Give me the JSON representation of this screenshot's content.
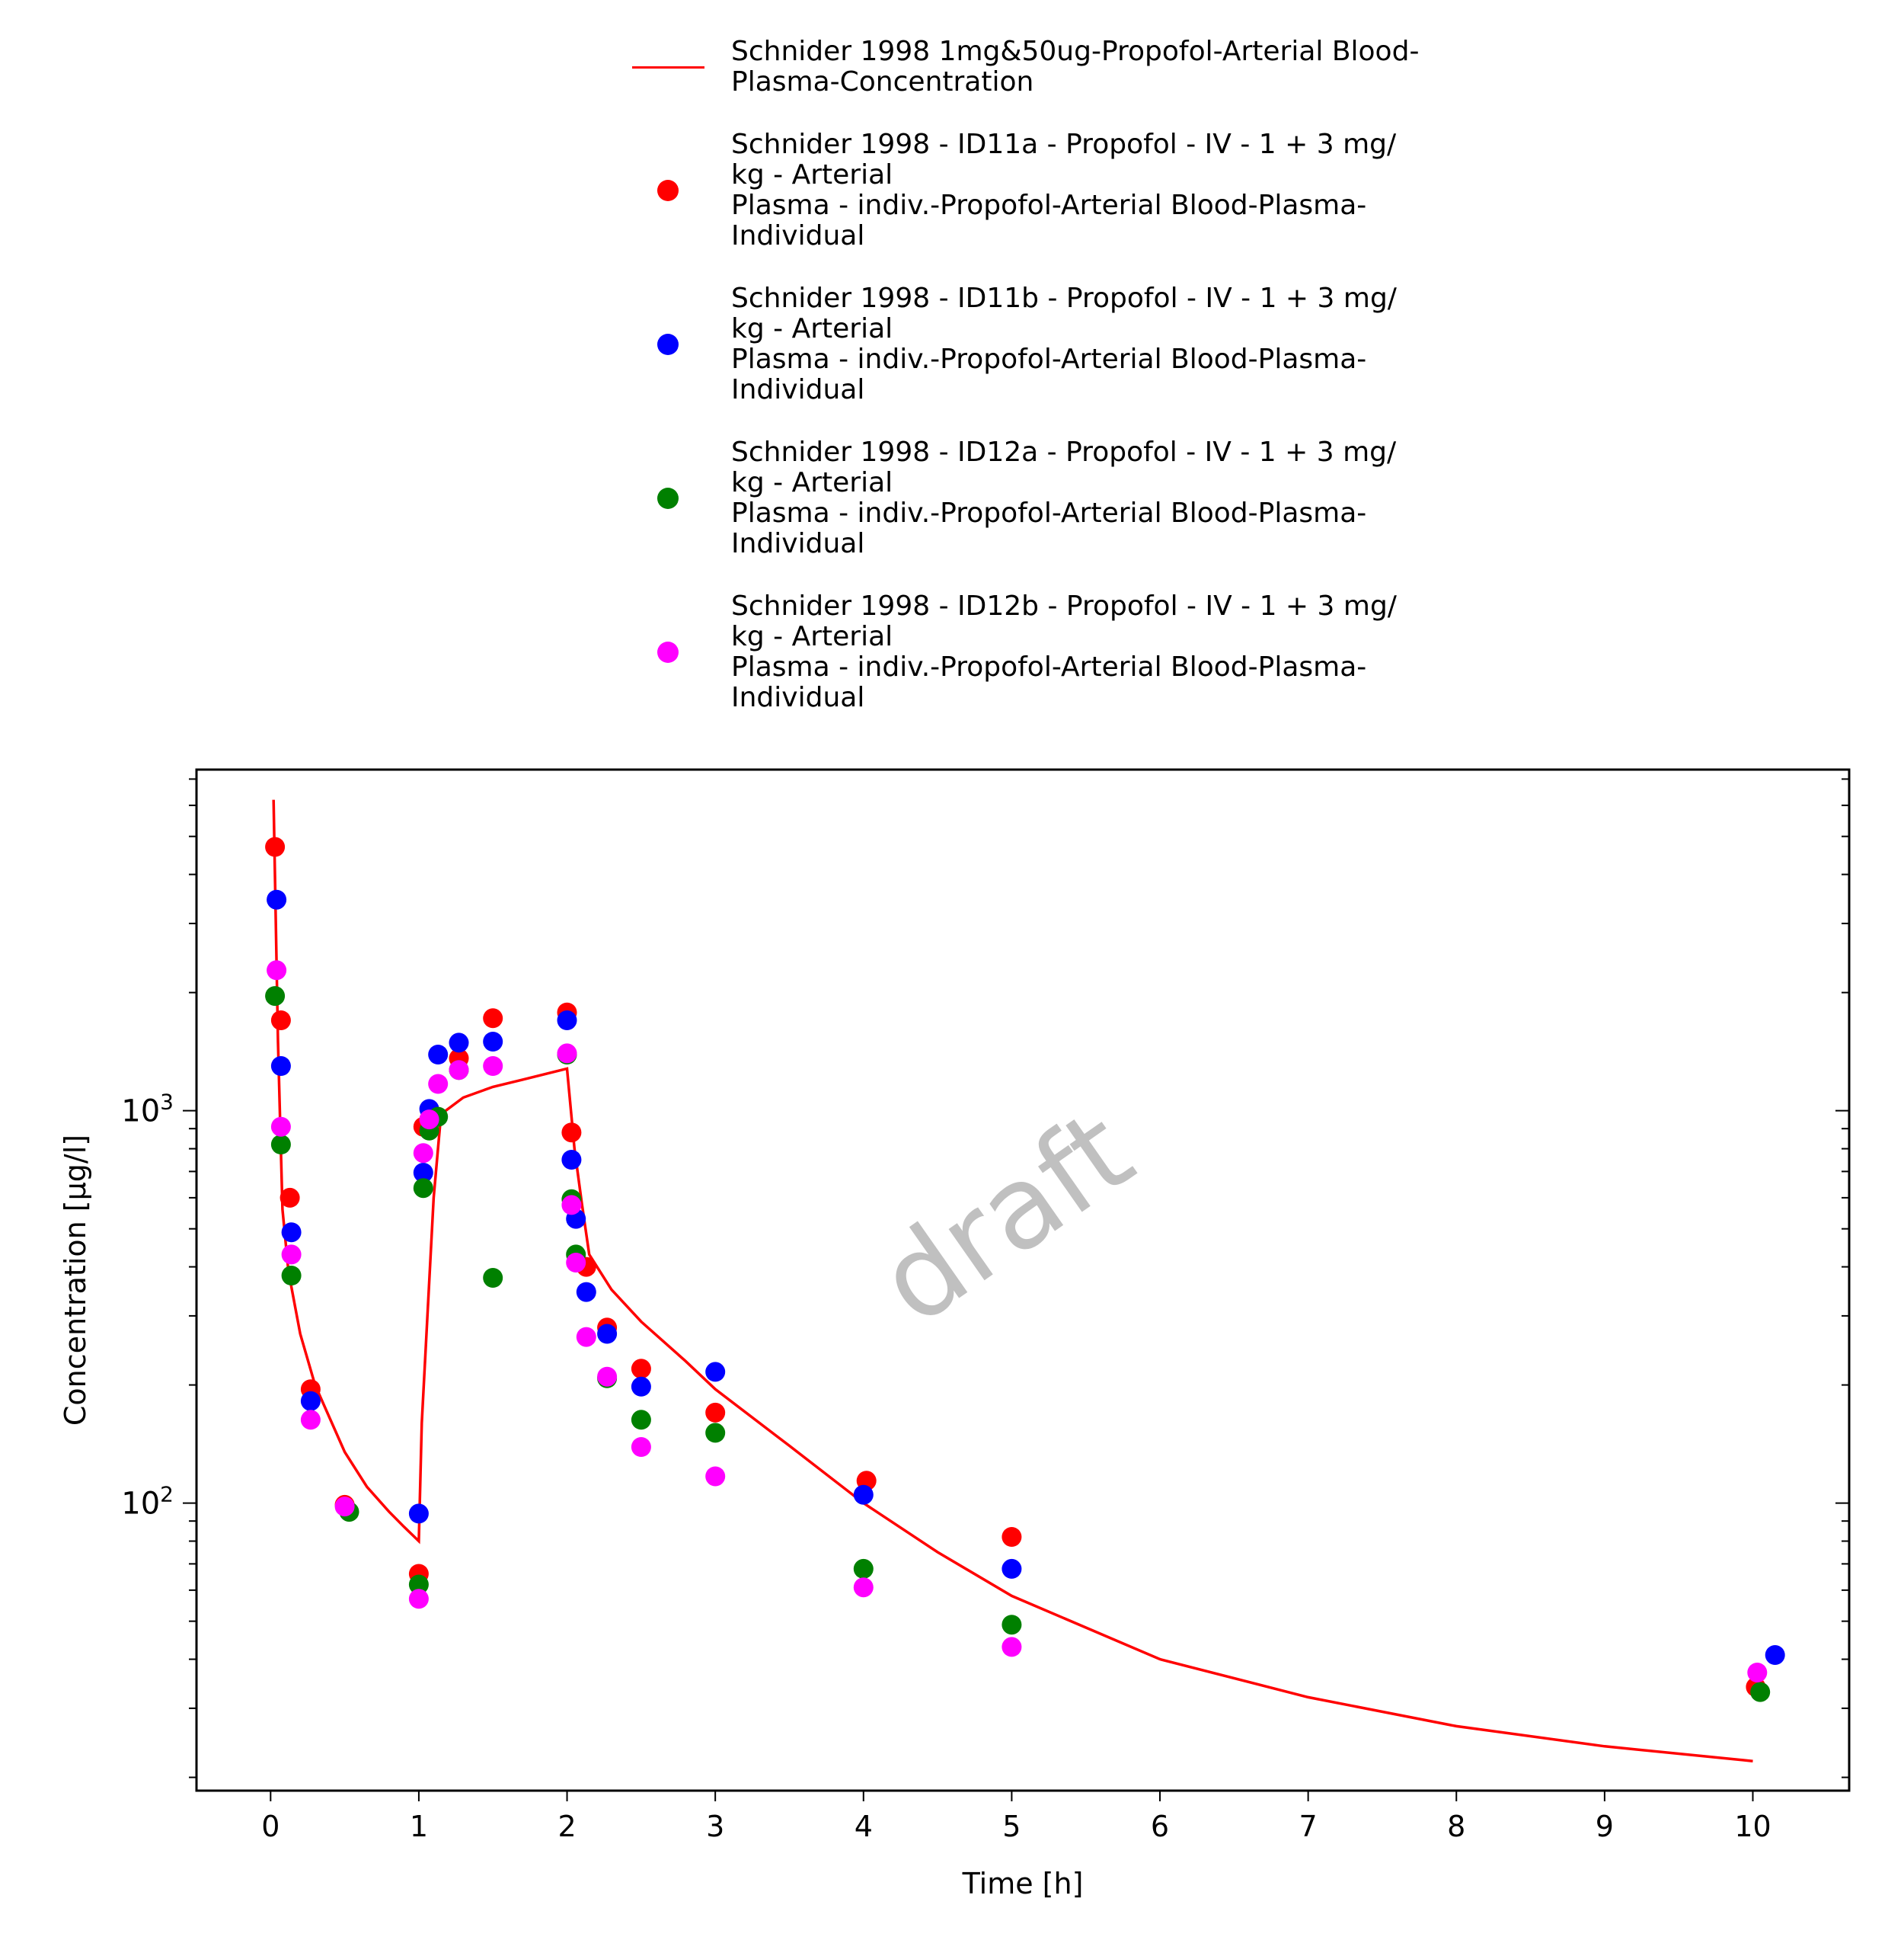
{
  "chart_data": {
    "type": "scatter",
    "xlabel": "Time [h]",
    "ylabel": "Concentration [µg/l]",
    "xlim": [
      -0.5,
      10.65
    ],
    "ylim": [
      18.5,
      7400
    ],
    "y_scale": "log",
    "x_ticks": [
      0,
      1,
      2,
      3,
      4,
      5,
      6,
      7,
      8,
      9,
      10
    ],
    "y_tick_labels": [
      {
        "value": 100,
        "base": "10",
        "exp": "2"
      },
      {
        "value": 1000,
        "base": "10",
        "exp": "3"
      }
    ],
    "grid": false,
    "legend_placement": "top",
    "watermark": "draft",
    "series": [
      {
        "name": "Schnider 1998 1mg&50ug-Propofol-Arterial Blood-\nPlasma-Concentration",
        "kind": "line",
        "color": "#ff0000",
        "x": [
          0.02,
          0.05,
          0.08,
          0.12,
          0.2,
          0.3,
          0.5,
          0.65,
          0.8,
          0.9,
          1.0,
          1.02,
          1.1,
          1.15,
          1.3,
          1.5,
          1.7,
          2.0,
          2.05,
          2.1,
          2.15,
          2.3,
          2.5,
          2.8,
          3.0,
          3.5,
          4.0,
          4.5,
          5.0,
          6.0,
          7.0,
          8.0,
          9.0,
          10.0
        ],
        "y": [
          6200,
          1500,
          560,
          390,
          270,
          200,
          135,
          110,
          95,
          87,
          80,
          160,
          600,
          980,
          1080,
          1150,
          1200,
          1280,
          800,
          580,
          430,
          350,
          290,
          230,
          195,
          140,
          100,
          75,
          58,
          40,
          32,
          27,
          24,
          22
        ]
      },
      {
        "name": "Schnider 1998 - ID11a - Propofol - IV - 1 + 3 mg/\nkg - Arterial\nPlasma - indiv.-Propofol-Arterial Blood-Plasma-\nIndividual",
        "kind": "points",
        "color": "#ff0000",
        "x": [
          0.03,
          0.07,
          0.13,
          0.27,
          0.5,
          1.0,
          1.03,
          1.07,
          1.27,
          1.5,
          2.0,
          2.03,
          2.13,
          2.27,
          2.5,
          3.0,
          4.02,
          5.0,
          10.02
        ],
        "y": [
          4700,
          1700,
          600,
          195,
          99,
          66,
          910,
          950,
          1360,
          1720,
          1780,
          880,
          400,
          280,
          220,
          170,
          114,
          82,
          34
        ]
      },
      {
        "name": "Schnider 1998 - ID11b - Propofol - IV - 1 + 3 mg/\nkg - Arterial\nPlasma - indiv.-Propofol-Arterial Blood-Plasma-\nIndividual",
        "kind": "points",
        "color": "#0000ff",
        "x": [
          0.04,
          0.07,
          0.14,
          0.27,
          1.0,
          1.03,
          1.07,
          1.13,
          1.27,
          1.5,
          2.0,
          2.03,
          2.06,
          2.13,
          2.27,
          2.5,
          3.0,
          4.0,
          5.0,
          10.15
        ],
        "y": [
          3450,
          1300,
          490,
          182,
          94,
          695,
          1010,
          1390,
          1490,
          1500,
          1700,
          750,
          530,
          345,
          270,
          198,
          216,
          105,
          68,
          41
        ]
      },
      {
        "name": "Schnider 1998 - ID12a - Propofol - IV - 1 + 3 mg/\nkg - Arterial\nPlasma - indiv.-Propofol-Arterial Blood-Plasma-\nIndividual",
        "kind": "points",
        "color": "#008000",
        "x": [
          0.03,
          0.07,
          0.14,
          0.53,
          1.0,
          1.03,
          1.07,
          1.13,
          1.27,
          1.5,
          2.0,
          2.03,
          2.06,
          2.27,
          2.5,
          3.0,
          4.0,
          5.0,
          10.05
        ],
        "y": [
          1960,
          820,
          380,
          95,
          62,
          635,
          890,
          965,
          1270,
          375,
          1390,
          595,
          430,
          208,
          163,
          151,
          68,
          49,
          33
        ]
      },
      {
        "name": "Schnider 1998 - ID12b - Propofol - IV - 1 + 3 mg/\nkg - Arterial\nPlasma - indiv.-Propofol-Arterial Blood-Plasma-\nIndividual",
        "kind": "points",
        "color": "#ff00ff",
        "x": [
          0.04,
          0.07,
          0.14,
          0.27,
          0.5,
          1.0,
          1.03,
          1.07,
          1.13,
          1.27,
          1.5,
          2.0,
          2.03,
          2.06,
          2.13,
          2.27,
          2.5,
          3.0,
          4.0,
          5.0,
          10.03
        ],
        "y": [
          2280,
          910,
          430,
          163,
          98,
          57,
          780,
          950,
          1170,
          1270,
          1300,
          1400,
          575,
          410,
          265,
          210,
          139,
          117,
          61,
          43,
          37
        ]
      }
    ]
  }
}
